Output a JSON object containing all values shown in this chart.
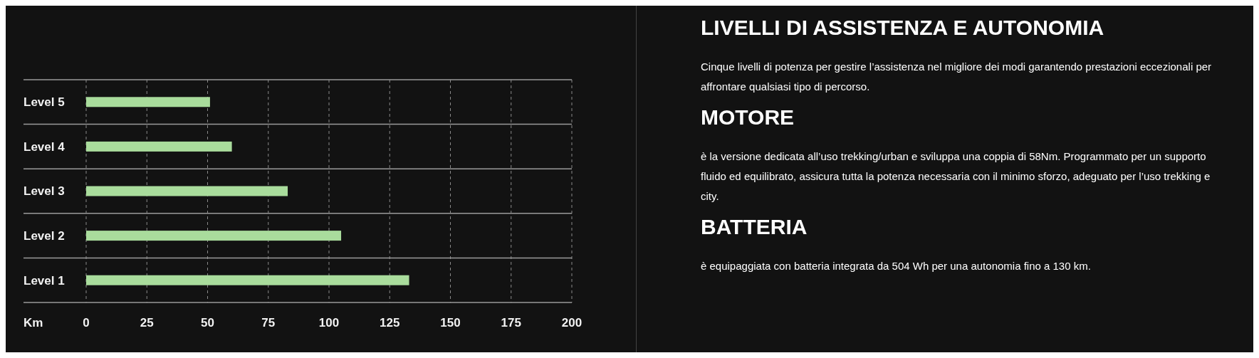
{
  "chart_data": [
    {
      "type": "bar",
      "orientation": "horizontal",
      "categories": [
        "Level 5",
        "Level 4",
        "Level 3",
        "Level 2",
        "Level 1"
      ],
      "values": [
        51,
        60,
        83,
        105,
        133
      ],
      "color": "#a9dc9c",
      "xlabel": "Km",
      "xlim": [
        0,
        200
      ],
      "xticks": [
        0,
        25,
        50,
        75,
        100,
        125,
        150,
        175,
        200
      ],
      "grid": "x"
    },
    {
      "type": "other",
      "title": "LIVELLI DI ASSISTENZA E AUTONOMIA",
      "annotations": [
        "Cinque livelli di potenza per gestire l’assistenza nel migliore dei modi garantendo prestazioni eccezionali per affrontare qualsiasi tipo di percorso.",
        "MOTORE",
        "è la versione dedicata all’uso trekking/urban e sviluppa una coppia di 58Nm. Programmato per un supporto fluido ed equilibrato, assicura tutta la potenza necessaria con il minimo sforzo, adeguato per l’uso trekking e city.",
        "BATTERIA",
        "è equipaggiata con batteria integrata da 504 Wh per una autonomia fino a 130 km."
      ]
    }
  ]
}
